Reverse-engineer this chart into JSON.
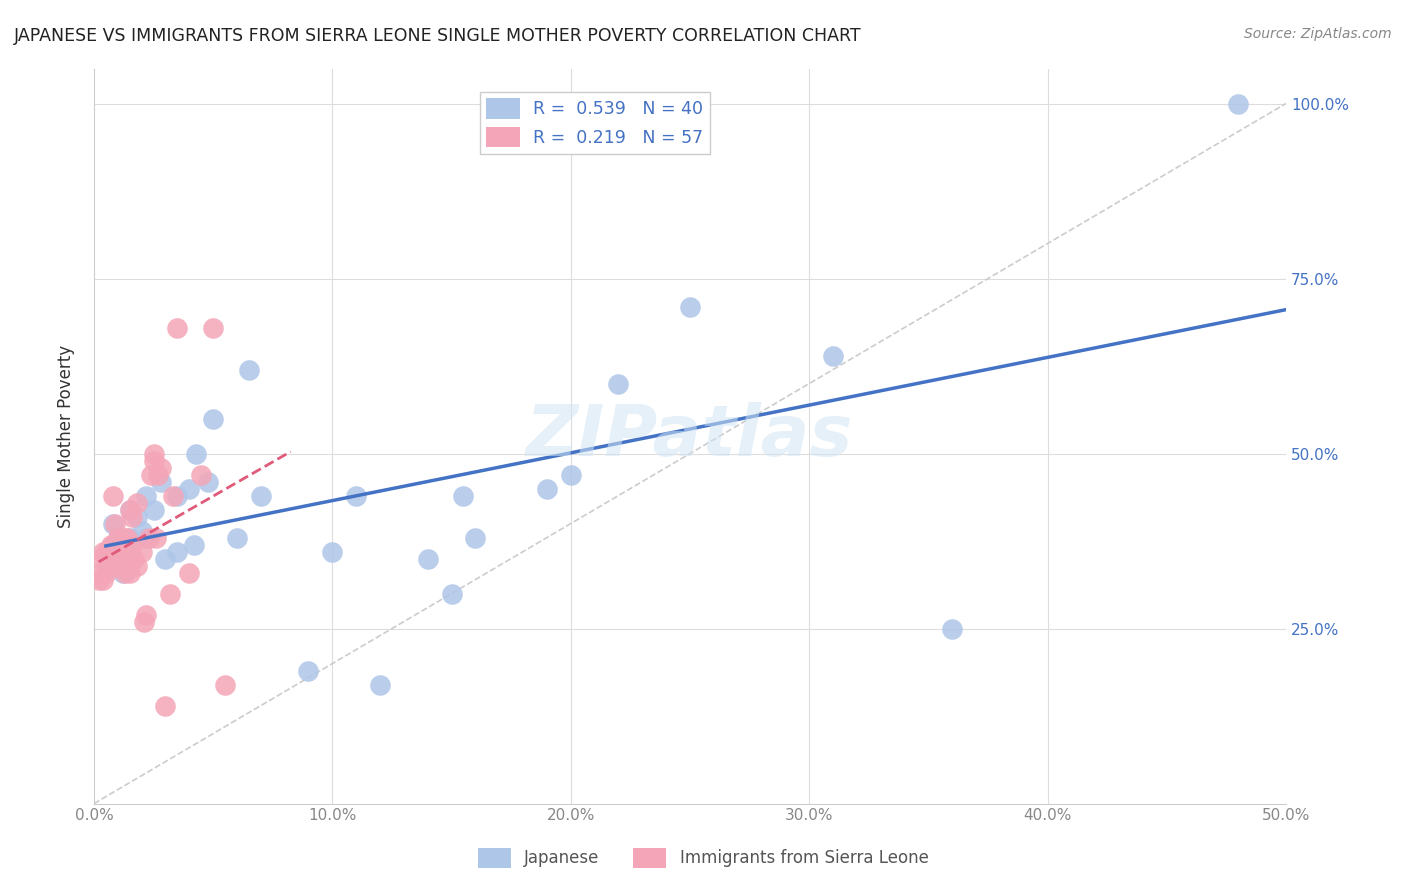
{
  "title": "JAPANESE VS IMMIGRANTS FROM SIERRA LEONE SINGLE MOTHER POVERTY CORRELATION CHART",
  "source": "Source: ZipAtlas.com",
  "ylabel": "Single Mother Poverty",
  "xlim": [
    0,
    0.5
  ],
  "ylim": [
    0,
    1.05
  ],
  "xtick_labels": [
    "0.0%",
    "10.0%",
    "20.0%",
    "30.0%",
    "40.0%",
    "50.0%"
  ],
  "xtick_vals": [
    0,
    0.1,
    0.2,
    0.3,
    0.4,
    0.5
  ],
  "ytick_labels": [
    "25.0%",
    "50.0%",
    "75.0%",
    "100.0%"
  ],
  "ytick_vals": [
    0.25,
    0.5,
    0.75,
    1.0
  ],
  "watermark": "ZIPatlas",
  "japanese_color": "#aec6e8",
  "sierra_leone_color": "#f4a6b8",
  "japanese_trendline_color": "#4472c4",
  "sierra_leone_trendline_color": "#e05a7a",
  "japanese_x": [
    0.005,
    0.008,
    0.008,
    0.01,
    0.012,
    0.014,
    0.015,
    0.015,
    0.018,
    0.02,
    0.022,
    0.022,
    0.025,
    0.028,
    0.03,
    0.035,
    0.035,
    0.04,
    0.042,
    0.043,
    0.048,
    0.05,
    0.06,
    0.065,
    0.07,
    0.09,
    0.1,
    0.11,
    0.12,
    0.14,
    0.15,
    0.155,
    0.16,
    0.19,
    0.2,
    0.22,
    0.25,
    0.31,
    0.36,
    0.48
  ],
  "japanese_y": [
    0.35,
    0.37,
    0.4,
    0.38,
    0.33,
    0.36,
    0.42,
    0.38,
    0.41,
    0.39,
    0.44,
    0.38,
    0.42,
    0.46,
    0.35,
    0.44,
    0.36,
    0.45,
    0.37,
    0.5,
    0.46,
    0.55,
    0.38,
    0.62,
    0.44,
    0.19,
    0.36,
    0.44,
    0.17,
    0.35,
    0.3,
    0.44,
    0.38,
    0.45,
    0.47,
    0.6,
    0.71,
    0.64,
    0.25,
    1.0
  ],
  "sierra_leone_x": [
    0.002,
    0.003,
    0.003,
    0.004,
    0.004,
    0.005,
    0.005,
    0.005,
    0.006,
    0.006,
    0.007,
    0.007,
    0.007,
    0.008,
    0.008,
    0.008,
    0.009,
    0.009,
    0.009,
    0.01,
    0.01,
    0.01,
    0.01,
    0.011,
    0.011,
    0.012,
    0.012,
    0.013,
    0.013,
    0.014,
    0.014,
    0.015,
    0.015,
    0.015,
    0.016,
    0.016,
    0.017,
    0.018,
    0.018,
    0.02,
    0.021,
    0.022,
    0.023,
    0.024,
    0.025,
    0.025,
    0.026,
    0.027,
    0.028,
    0.03,
    0.032,
    0.033,
    0.035,
    0.04,
    0.045,
    0.05,
    0.055
  ],
  "sierra_leone_y": [
    0.32,
    0.33,
    0.35,
    0.36,
    0.32,
    0.33,
    0.35,
    0.36,
    0.34,
    0.36,
    0.34,
    0.35,
    0.37,
    0.35,
    0.37,
    0.44,
    0.34,
    0.36,
    0.4,
    0.34,
    0.35,
    0.36,
    0.38,
    0.35,
    0.37,
    0.36,
    0.36,
    0.33,
    0.38,
    0.34,
    0.38,
    0.33,
    0.35,
    0.42,
    0.37,
    0.41,
    0.35,
    0.34,
    0.43,
    0.36,
    0.26,
    0.27,
    0.38,
    0.47,
    0.49,
    0.5,
    0.38,
    0.47,
    0.48,
    0.14,
    0.3,
    0.44,
    0.68,
    0.33,
    0.47,
    0.68,
    0.17
  ],
  "background_color": "#ffffff",
  "grid_color": "#dddddd"
}
